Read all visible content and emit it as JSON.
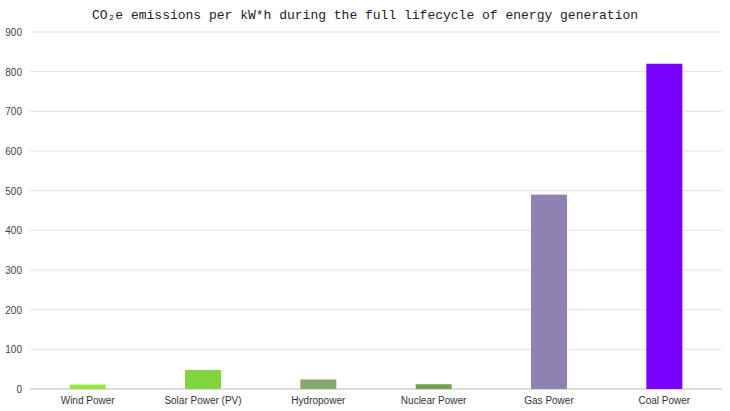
{
  "chart_data": {
    "type": "bar",
    "title": "CO₂e emissions per kW*h during the full lifecycle of energy generation",
    "categories": [
      "Wind Power",
      "Solar Power (PV)",
      "Hydropower",
      "Nuclear Power",
      "Gas Power",
      "Coal Power"
    ],
    "values": [
      11,
      48,
      24,
      12,
      490,
      820
    ],
    "colors": [
      "#91e63a",
      "#80d43e",
      "#87a86f",
      "#6fa548",
      "#8f82b2",
      "#7700ff"
    ],
    "ylim": [
      0,
      900
    ],
    "yticks": [
      0,
      100,
      200,
      300,
      400,
      500,
      600,
      700,
      800,
      900
    ],
    "grid": true
  }
}
